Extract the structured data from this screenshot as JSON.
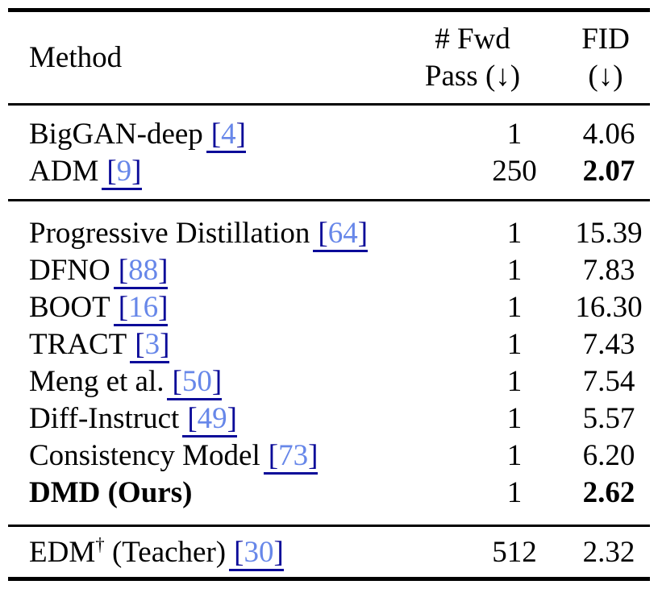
{
  "header": {
    "method_label": "Method",
    "col2_line1": "# Fwd",
    "col2_line2": "Pass (↓)",
    "col3_line1": "FID",
    "col3_line2": "(↓)"
  },
  "colors": {
    "cite_bracket_underline": "#0b0b99",
    "cite_number": "#6787e9",
    "rule": "#000000",
    "text": "#000000",
    "background": "#ffffff"
  },
  "cite_brackets": {
    "open": "[",
    "close": "]"
  },
  "groups": [
    {
      "rows": [
        {
          "name": "BigGAN-deep",
          "sup": "",
          "name_suffix": "",
          "cite": "4",
          "fwd": "1",
          "fid": "4.06",
          "bold_name": false,
          "bold_fid": false
        },
        {
          "name": "ADM",
          "sup": "",
          "name_suffix": "",
          "cite": "9",
          "fwd": "250",
          "fid": "2.07",
          "bold_name": false,
          "bold_fid": true
        }
      ]
    },
    {
      "rows": [
        {
          "name": "Progressive Distillation",
          "sup": "",
          "name_suffix": "",
          "cite": "64",
          "fwd": "1",
          "fid": "15.39",
          "bold_name": false,
          "bold_fid": false
        },
        {
          "name": "DFNO",
          "sup": "",
          "name_suffix": "",
          "cite": "88",
          "fwd": "1",
          "fid": "7.83",
          "bold_name": false,
          "bold_fid": false
        },
        {
          "name": "BOOT",
          "sup": "",
          "name_suffix": "",
          "cite": "16",
          "fwd": "1",
          "fid": "16.30",
          "bold_name": false,
          "bold_fid": false
        },
        {
          "name": "TRACT",
          "sup": "",
          "name_suffix": "",
          "cite": "3",
          "fwd": "1",
          "fid": "7.43",
          "bold_name": false,
          "bold_fid": false
        },
        {
          "name": "Meng et al.",
          "sup": "",
          "name_suffix": "",
          "cite": "50",
          "fwd": "1",
          "fid": "7.54",
          "bold_name": false,
          "bold_fid": false
        },
        {
          "name": "Diff-Instruct",
          "sup": "",
          "name_suffix": "",
          "cite": "49",
          "fwd": "1",
          "fid": "5.57",
          "bold_name": false,
          "bold_fid": false
        },
        {
          "name": "Consistency Model",
          "sup": "",
          "name_suffix": "",
          "cite": "73",
          "fwd": "1",
          "fid": "6.20",
          "bold_name": false,
          "bold_fid": false
        },
        {
          "name": "DMD (Ours)",
          "sup": "",
          "name_suffix": "",
          "cite": "",
          "fwd": "1",
          "fid": "2.62",
          "bold_name": true,
          "bold_fid": true
        }
      ]
    },
    {
      "rows": [
        {
          "name": "EDM",
          "sup": "†",
          "name_suffix": " (Teacher)",
          "cite": "30",
          "fwd": "512",
          "fid": "2.32",
          "bold_name": false,
          "bold_fid": false
        }
      ]
    }
  ]
}
